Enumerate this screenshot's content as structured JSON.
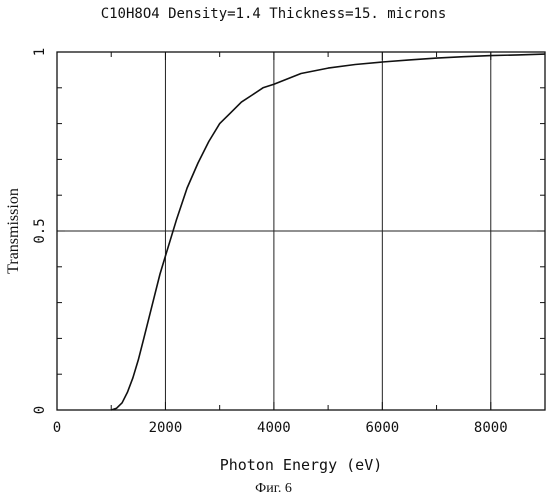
{
  "chart_data": {
    "type": "line",
    "title": "C10H8O4 Density=1.4 Thickness=15. microns",
    "xlabel": "Photon Energy (eV)",
    "ylabel": "Transmission",
    "xlim": [
      0,
      9000
    ],
    "ylim": [
      0,
      1
    ],
    "x_ticks": [
      0,
      2000,
      4000,
      6000,
      8000
    ],
    "x_tick_labels": [
      "0",
      "2000",
      "4000",
      "6000",
      "8000"
    ],
    "y_ticks": [
      0,
      0.5,
      1
    ],
    "y_tick_labels": [
      "0",
      "0.5",
      "1"
    ],
    "grid": true,
    "series": [
      {
        "x": [
          1000,
          1100,
          1200,
          1300,
          1400,
          1500,
          1600,
          1700,
          1800,
          1900,
          2000,
          2200,
          2400,
          2600,
          2800,
          3000,
          3200,
          3400,
          3600,
          3800,
          4000,
          4500,
          5000,
          5500,
          6000,
          6500,
          7000,
          7500,
          8000,
          8500,
          9000
        ],
        "y": [
          0.0,
          0.005,
          0.02,
          0.05,
          0.09,
          0.14,
          0.2,
          0.26,
          0.32,
          0.38,
          0.43,
          0.53,
          0.62,
          0.69,
          0.75,
          0.8,
          0.83,
          0.86,
          0.88,
          0.9,
          0.91,
          0.94,
          0.955,
          0.965,
          0.972,
          0.978,
          0.983,
          0.987,
          0.99,
          0.992,
          0.994
        ]
      }
    ]
  },
  "caption": "Фиг. 6",
  "colors": {
    "line": "#111111",
    "grid": "#222222",
    "frame": "#111111"
  }
}
